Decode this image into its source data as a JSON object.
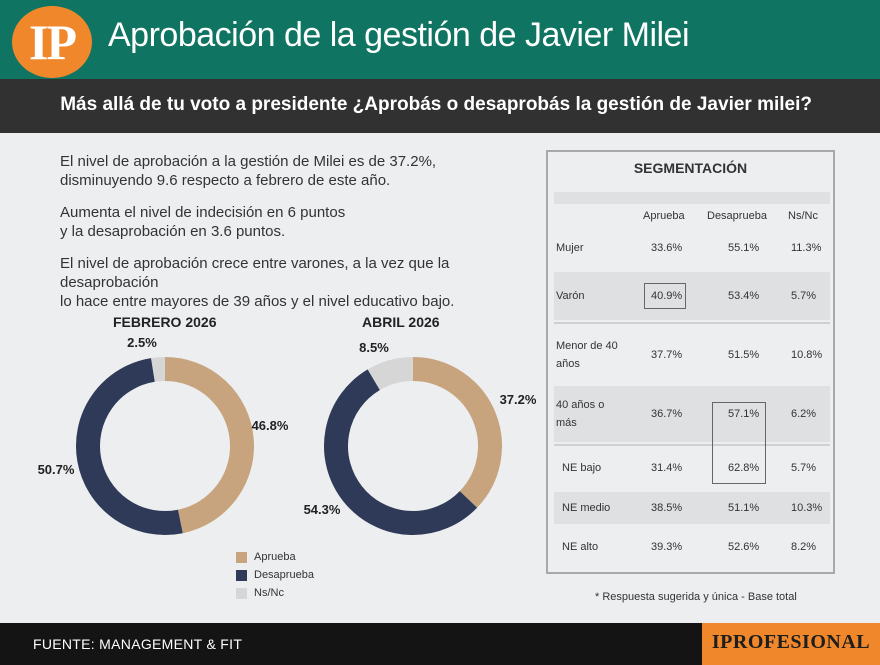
{
  "header": {
    "logo": "IP",
    "title": "Aprobación de la gestión de Javier Milei"
  },
  "subheader": "Más allá de tu voto a presidente ¿Aprobás o desaprobás la gestión de Javier milei?",
  "summary": {
    "p1_line1": "El nivel de aprobación a la gestión de Milei es de 37.2%,",
    "p1_line2": "disminuyendo 9.6 respecto a febrero de este año.",
    "p2_line1": "Aumenta el nivel de indecisión en 6 puntos",
    "p2_line2": "y la desaprobación en 3.6 puntos.",
    "p3_line1": "El nivel de aprobación crece entre varones, a la vez que la desaprobación",
    "p3_line2": "lo hace entre mayores de 39 años y el nivel educativo bajo."
  },
  "colors": {
    "aprueba": "#c8a47e",
    "desaprueba": "#2e3a57",
    "nsnc": "#d6d6d6",
    "header_green": "#0f7562",
    "accent_orange": "#f0882b"
  },
  "chart_data": [
    {
      "type": "pie",
      "title": "FEBRERO 2026",
      "categories": [
        "Aprueba",
        "Desaprueba",
        "Ns/Nc"
      ],
      "values": [
        46.8,
        50.7,
        2.5
      ],
      "labels": [
        "46.8%",
        "50.7%",
        "2.5%"
      ]
    },
    {
      "type": "pie",
      "title": "ABRIL 2026",
      "categories": [
        "Aprueba",
        "Desaprueba",
        "Ns/Nc"
      ],
      "values": [
        37.2,
        54.3,
        8.5
      ],
      "labels": [
        "37.2%",
        "54.3%",
        "8.5%"
      ]
    }
  ],
  "legend": [
    "Aprueba",
    "Desaprueba",
    "Ns/Nc"
  ],
  "segmentation": {
    "title": "SEGMENTACIÓN",
    "columns": [
      "Aprueba",
      "Desaprueba",
      "Ns/Nc"
    ],
    "rows": [
      {
        "label": "Mujer",
        "values": [
          "33.6%",
          "55.1%",
          "11.3%"
        ]
      },
      {
        "label": "Varón",
        "values": [
          "40.9%",
          "53.4%",
          "5.7%"
        ]
      },
      {
        "label": "Menor de 40 años",
        "values": [
          "37.7%",
          "51.5%",
          "10.8%"
        ]
      },
      {
        "label": "40 años o más",
        "values": [
          "36.7%",
          "57.1%",
          "6.2%"
        ]
      },
      {
        "label": "NE bajo",
        "values": [
          "31.4%",
          "62.8%",
          "5.7%"
        ]
      },
      {
        "label": "NE medio",
        "values": [
          "38.5%",
          "51.1%",
          "10.3%"
        ]
      },
      {
        "label": "NE alto",
        "values": [
          "39.3%",
          "52.6%",
          "8.2%"
        ]
      }
    ]
  },
  "footnote": "* Respuesta sugerida y única - Base total",
  "footer": {
    "source": "FUENTE: MANAGEMENT & FIT",
    "brand": "IPROFESIONAL"
  }
}
